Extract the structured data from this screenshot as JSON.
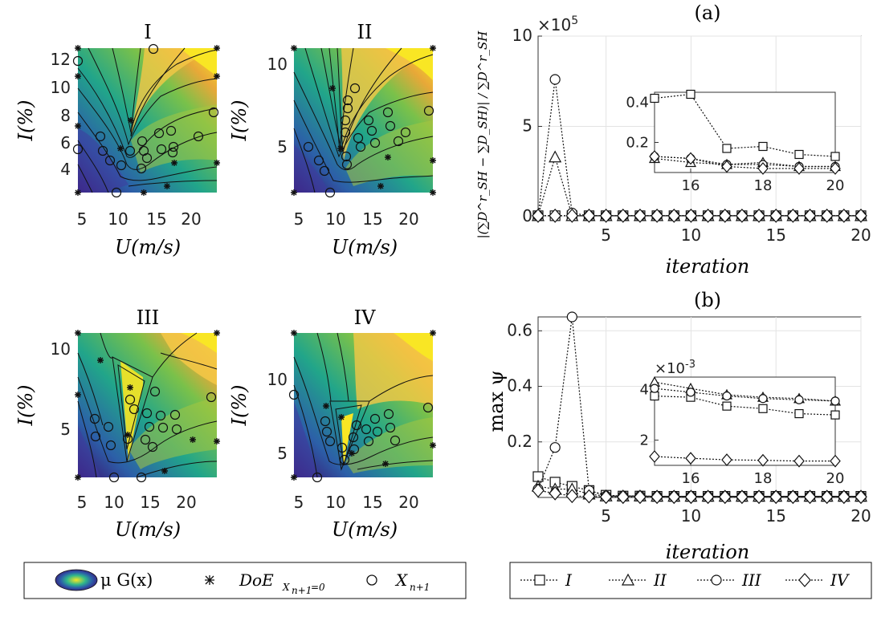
{
  "contour_panels": {
    "xlabel": "U(m/s)",
    "ylabel": "I(%)",
    "panels": [
      {
        "title": "I",
        "xticks": [
          "5",
          "10",
          "15",
          "20"
        ],
        "yticks": [
          "4",
          "6",
          "8",
          "10",
          "12"
        ]
      },
      {
        "title": "II",
        "xticks": [
          "5",
          "10",
          "15",
          "20"
        ],
        "yticks": [
          "5",
          "10"
        ]
      },
      {
        "title": "III",
        "xticks": [
          "5",
          "10",
          "15",
          "20"
        ],
        "yticks": [
          "5",
          "10"
        ]
      },
      {
        "title": "IV",
        "xticks": [
          "5",
          "10",
          "15",
          "20"
        ],
        "yticks": [
          "5",
          "10"
        ]
      }
    ],
    "legend": {
      "contour_label": "μ G(x)",
      "doe_label": "DoE",
      "doe_sub": "X",
      "doe_sub2": "n+1",
      "doe_sub3": "=0",
      "new_label": "X",
      "new_sub": "n+1"
    }
  },
  "chart_data": [
    {
      "type": "line",
      "title": "(a)",
      "xlabel": "iteration",
      "ylabel": "|(∑D^r_SH − ∑D_SH)| / ∑D^r_SH",
      "exponent_label": "×10",
      "exponent_power": "5",
      "xlim": [
        1,
        20
      ],
      "ylim": [
        0,
        10
      ],
      "xticks": [
        "5",
        "10",
        "15",
        "20"
      ],
      "yticks": [
        "0",
        "5",
        "10"
      ],
      "x": [
        1,
        2,
        3,
        4,
        5,
        6,
        7,
        8,
        9,
        10,
        11,
        12,
        13,
        14,
        15,
        16,
        17,
        18,
        19,
        20
      ],
      "series": [
        {
          "name": "I",
          "marker": "square",
          "values": [
            0.05,
            0.05,
            0.05,
            0.05,
            0.05,
            0.05,
            0.05,
            0.05,
            0.05,
            0.05,
            0.05,
            0.05,
            0.05,
            0.05,
            0.05,
            0.05,
            0.05,
            0.05,
            0.05,
            0.05
          ]
        },
        {
          "name": "II",
          "marker": "triangle",
          "values": [
            0.05,
            3.3,
            0.05,
            0.05,
            0.05,
            0.05,
            0.05,
            0.05,
            0.05,
            0.05,
            0.05,
            0.05,
            0.05,
            0.05,
            0.05,
            0.05,
            0.05,
            0.05,
            0.05,
            0.05
          ]
        },
        {
          "name": "III",
          "marker": "circle",
          "values": [
            0.05,
            7.6,
            0.2,
            0.05,
            0.05,
            0.05,
            0.05,
            0.05,
            0.05,
            0.05,
            0.05,
            0.05,
            0.05,
            0.05,
            0.05,
            0.05,
            0.05,
            0.05,
            0.05,
            0.05
          ]
        },
        {
          "name": "IV",
          "marker": "diamond",
          "values": [
            0.05,
            0.05,
            0.05,
            0.05,
            0.05,
            0.05,
            0.05,
            0.05,
            0.05,
            0.05,
            0.05,
            0.05,
            0.05,
            0.05,
            0.05,
            0.05,
            0.05,
            0.05,
            0.05,
            0.05
          ]
        }
      ],
      "inset": {
        "xlim": [
          15,
          20
        ],
        "ylim": [
          0.05,
          0.45
        ],
        "xticks": [
          "16",
          "18",
          "20"
        ],
        "yticks": [
          "0.2",
          "0.4"
        ],
        "x": [
          15,
          16,
          17,
          18,
          19,
          20
        ],
        "series": [
          {
            "name": "I",
            "marker": "square",
            "values": [
              0.42,
              0.44,
              0.17,
              0.18,
              0.14,
              0.13
            ]
          },
          {
            "name": "II",
            "marker": "triangle",
            "values": [
              0.12,
              0.1,
              0.09,
              0.1,
              0.08,
              0.08
            ]
          },
          {
            "name": "III",
            "marker": "circle",
            "values": [
              0.13,
              0.12,
              0.09,
              0.09,
              0.08,
              0.08
            ]
          },
          {
            "name": "IV",
            "marker": "diamond",
            "values": [
              0.13,
              0.12,
              0.08,
              0.07,
              0.07,
              0.07
            ]
          }
        ]
      }
    },
    {
      "type": "line",
      "title": "(b)",
      "xlabel": "iteration",
      "ylabel": "max ψ",
      "xlim": [
        1,
        20
      ],
      "ylim": [
        0,
        0.65
      ],
      "xticks": [
        "5",
        "10",
        "15",
        "20"
      ],
      "yticks": [
        "0.2",
        "0.4",
        "0.6"
      ],
      "x": [
        1,
        2,
        3,
        4,
        5,
        6,
        7,
        8,
        9,
        10,
        11,
        12,
        13,
        14,
        15,
        16,
        17,
        18,
        19,
        20
      ],
      "series": [
        {
          "name": "I",
          "marker": "square",
          "values": [
            0.075,
            0.055,
            0.04,
            0.025,
            0.008,
            0.005,
            0.005,
            0.004,
            0.004,
            0.004,
            0.004,
            0.004,
            0.004,
            0.004,
            0.004,
            0.004,
            0.004,
            0.004,
            0.004,
            0.004
          ]
        },
        {
          "name": "II",
          "marker": "triangle",
          "values": [
            0.04,
            0.03,
            0.03,
            0.012,
            0.005,
            0.005,
            0.005,
            0.004,
            0.004,
            0.004,
            0.004,
            0.004,
            0.004,
            0.004,
            0.004,
            0.004,
            0.004,
            0.004,
            0.004,
            0.004
          ]
        },
        {
          "name": "III",
          "marker": "circle",
          "values": [
            0.03,
            0.18,
            0.66,
            0.025,
            0.005,
            0.005,
            0.005,
            0.004,
            0.004,
            0.004,
            0.004,
            0.004,
            0.004,
            0.004,
            0.004,
            0.004,
            0.004,
            0.004,
            0.004,
            0.004
          ]
        },
        {
          "name": "IV",
          "marker": "diamond",
          "values": [
            0.025,
            0.015,
            0.005,
            0.004,
            0.002,
            0.002,
            0.002,
            0.002,
            0.002,
            0.002,
            0.002,
            0.002,
            0.002,
            0.002,
            0.002,
            0.002,
            0.002,
            0.002,
            0.002,
            0.002
          ]
        }
      ],
      "inset": {
        "exponent_label": "×10",
        "exponent_power": "-3",
        "xlim": [
          15,
          20
        ],
        "ylim": [
          1,
          4.5
        ],
        "xticks": [
          "16",
          "18",
          "20"
        ],
        "yticks": [
          "2",
          "4"
        ],
        "x": [
          15,
          16,
          17,
          18,
          19,
          20
        ],
        "series": [
          {
            "name": "I",
            "marker": "square",
            "values": [
              3.75,
              3.7,
              3.35,
              3.25,
              3.05,
              3.0
            ]
          },
          {
            "name": "II",
            "marker": "triangle",
            "values": [
              4.3,
              4.05,
              3.8,
              3.7,
              3.65,
              3.55
            ]
          },
          {
            "name": "III",
            "marker": "circle",
            "values": [
              4.05,
              3.9,
              3.75,
              3.65,
              3.6,
              3.55
            ]
          },
          {
            "name": "IV",
            "marker": "diamond",
            "values": [
              1.35,
              1.28,
              1.22,
              1.2,
              1.17,
              1.17
            ]
          }
        ]
      }
    }
  ],
  "legend_right": {
    "items": [
      "I",
      "II",
      "III",
      "IV"
    ]
  }
}
